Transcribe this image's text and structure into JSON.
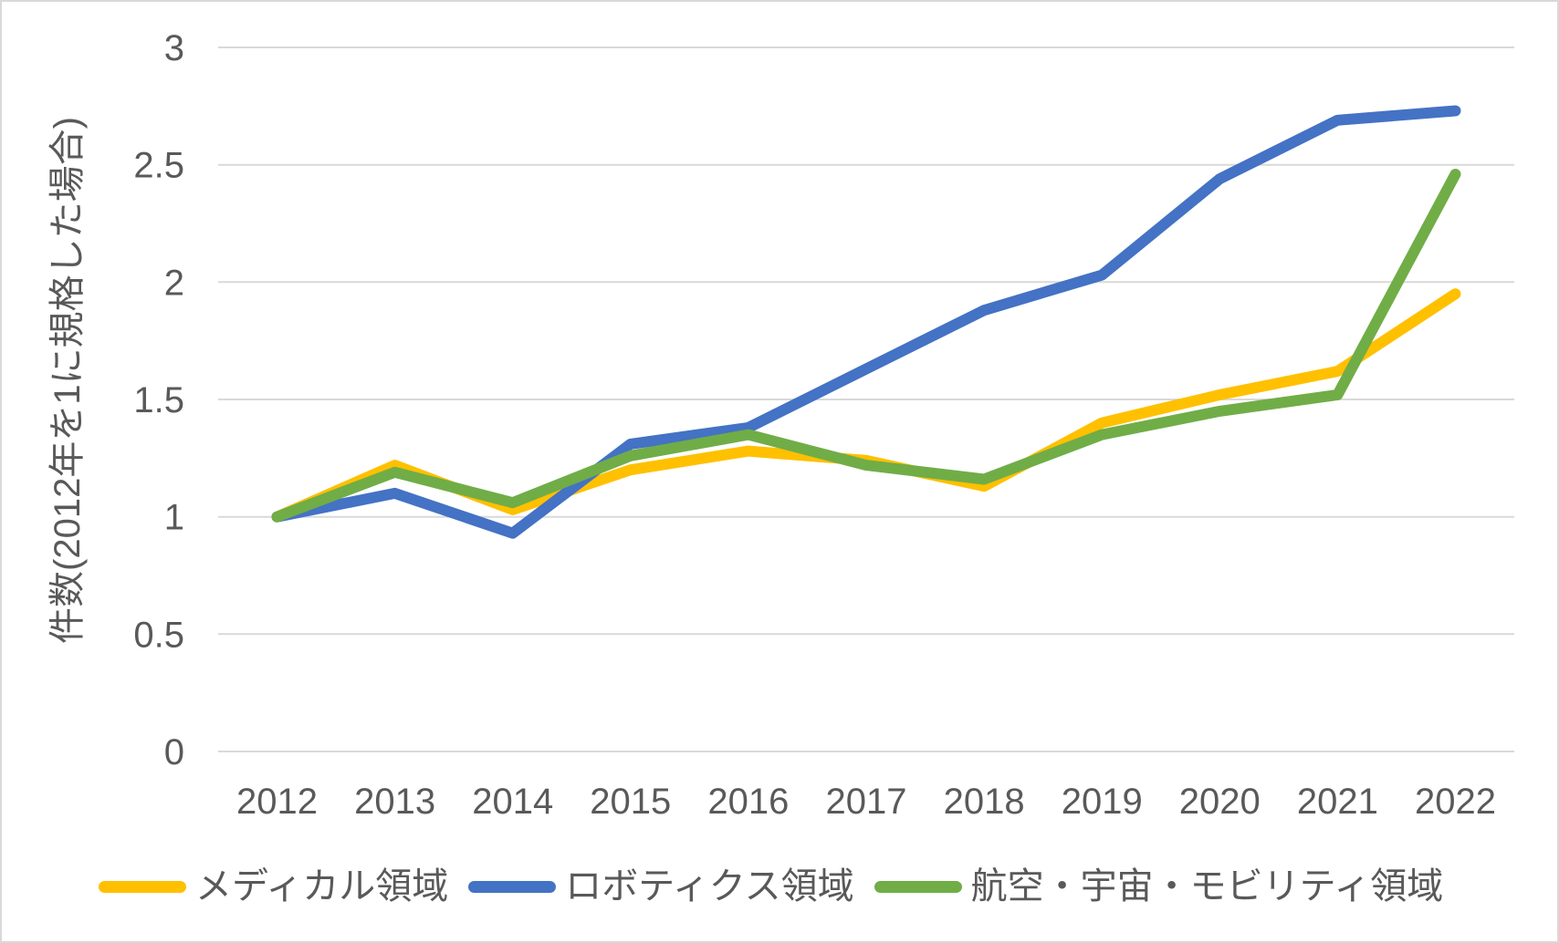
{
  "chart_data": {
    "type": "line",
    "title": "",
    "xlabel": "",
    "ylabel": "件数(2012年を1に規格した場合)",
    "categories": [
      "2012",
      "2013",
      "2014",
      "2015",
      "2016",
      "2017",
      "2018",
      "2019",
      "2020",
      "2021",
      "2022"
    ],
    "y_ticks": [
      "3",
      "2.5",
      "2",
      "1.5",
      "1",
      "0.5",
      "0"
    ],
    "y_tick_values": [
      3,
      2.5,
      2,
      1.5,
      1,
      0.5,
      0
    ],
    "ylim": [
      0,
      3
    ],
    "grid": "horizontal",
    "legend_position": "bottom",
    "colors": {
      "grid": "#d9d9d9",
      "axis_text": "#595959",
      "background": "#ffffff",
      "border": "#d9d9d9"
    },
    "series": [
      {
        "name": "メディカル領域",
        "color": "#FFC000",
        "values": [
          1.0,
          1.22,
          1.03,
          1.2,
          1.28,
          1.24,
          1.13,
          1.4,
          1.52,
          1.62,
          1.95
        ]
      },
      {
        "name": "ロボティクス領域",
        "color": "#4472C4",
        "values": [
          1.0,
          1.1,
          0.93,
          1.31,
          1.38,
          1.63,
          1.88,
          2.03,
          2.44,
          2.69,
          2.73
        ]
      },
      {
        "name": "航空・宇宙・モビリティ領域",
        "color": "#70AD47",
        "values": [
          1.0,
          1.19,
          1.06,
          1.26,
          1.35,
          1.22,
          1.16,
          1.35,
          1.45,
          1.52,
          2.46
        ]
      }
    ]
  }
}
